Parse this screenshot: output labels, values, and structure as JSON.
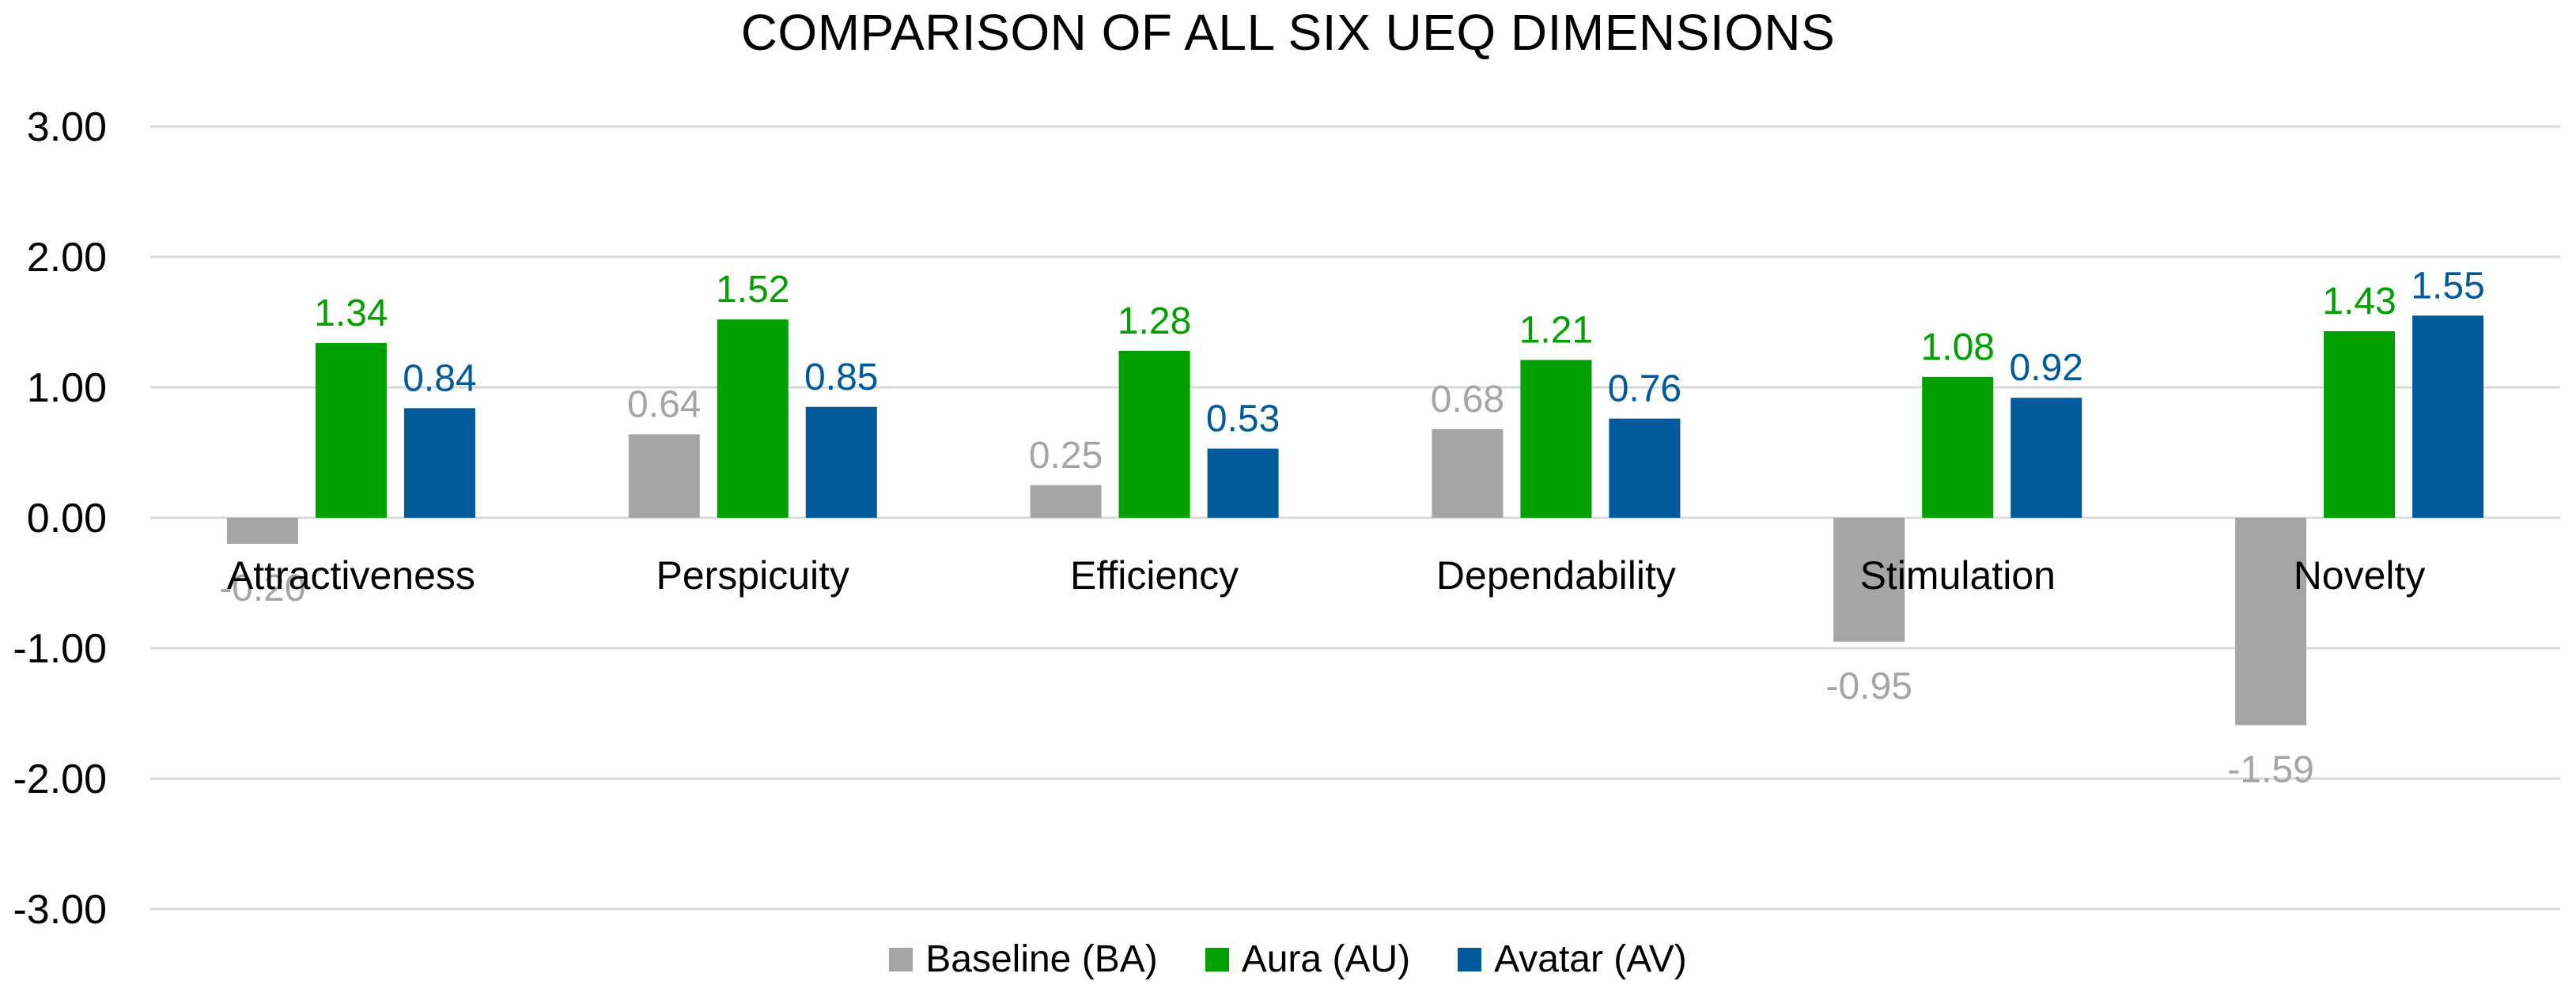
{
  "chart_data": {
    "type": "bar",
    "title": "COMPARISON OF ALL SIX UEQ DIMENSIONS",
    "categories": [
      "Attractiveness",
      "Perspicuity",
      "Efficiency",
      "Dependability",
      "Stimulation",
      "Novelty"
    ],
    "series": [
      {
        "name": "Baseline (BA)",
        "color": "#a5a5a5",
        "values": [
          -0.2,
          0.64,
          0.25,
          0.68,
          -0.95,
          -1.59
        ],
        "labels": [
          "-0.20",
          "0.64",
          "0.25",
          "0.68",
          "-0.95",
          "-1.59"
        ]
      },
      {
        "name": "Aura (AU)",
        "color": "#00a000",
        "values": [
          1.34,
          1.52,
          1.28,
          1.21,
          1.08,
          1.43
        ],
        "labels": [
          "1.34",
          "1.52",
          "1.28",
          "1.21",
          "1.08",
          "1.43"
        ]
      },
      {
        "name": "Avatar (AV)",
        "color": "#005a9c",
        "values": [
          0.84,
          0.85,
          0.53,
          0.76,
          0.92,
          1.55
        ],
        "labels": [
          "0.84",
          "0.85",
          "0.53",
          "0.76",
          "0.92",
          "1.55"
        ]
      }
    ],
    "yticks": [
      3,
      2,
      1,
      0,
      -1,
      -2,
      -3
    ],
    "ytick_labels": [
      "3.00",
      "2.00",
      "1.00",
      "0.00",
      "-1.00",
      "-2.00",
      "-3.00"
    ],
    "ylim": [
      -3,
      3
    ],
    "xlabel": "",
    "ylabel": "",
    "grid": true,
    "legend": "bottom-center",
    "gridline_color": "#d9d9d9",
    "label_text_color": "#000000"
  }
}
